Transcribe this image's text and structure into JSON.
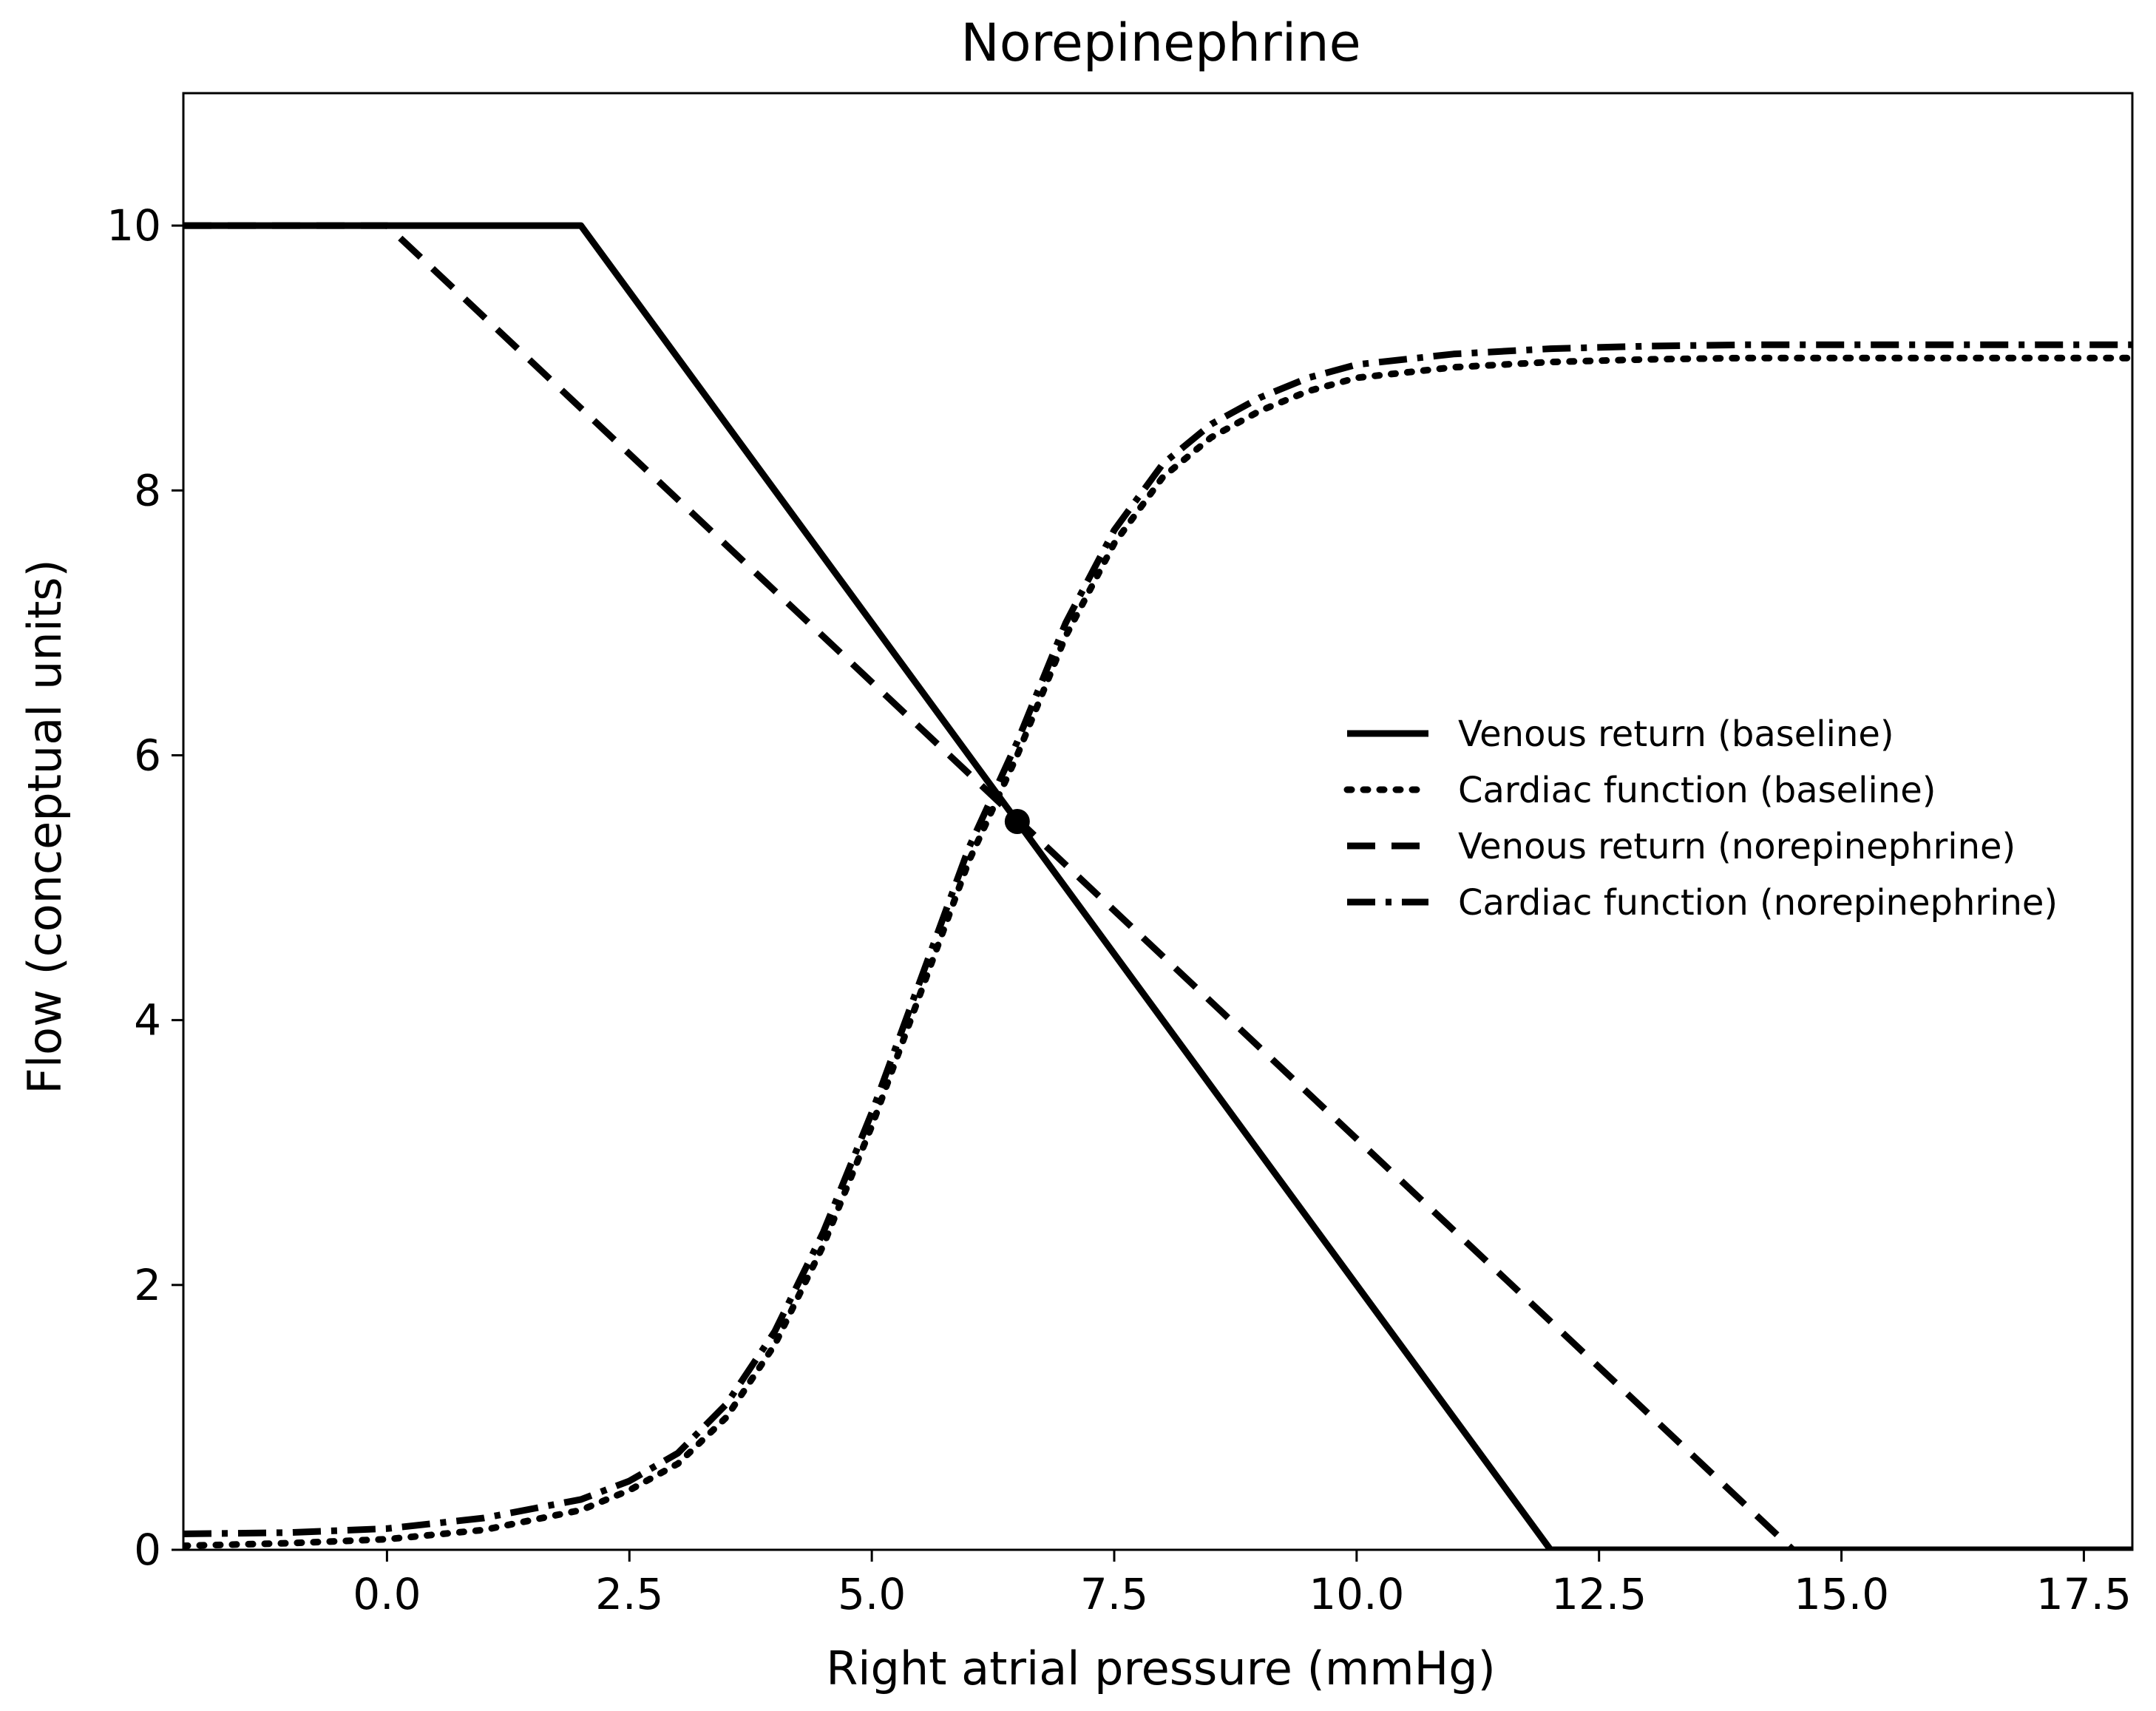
{
  "chart_data": {
    "type": "line",
    "title": "Norepinephrine",
    "xlabel": "Right atrial pressure (mmHg)",
    "ylabel": "Flow (conceptual units)",
    "xlim": [
      -2.1,
      18.0
    ],
    "ylim": [
      0,
      11.0
    ],
    "x_ticks": [
      0.0,
      2.5,
      5.0,
      7.5,
      10.0,
      12.5,
      15.0,
      17.5
    ],
    "x_tick_labels": [
      "0.0",
      "2.5",
      "5.0",
      "7.5",
      "10.0",
      "12.5",
      "15.0",
      "17.5"
    ],
    "y_ticks": [
      0,
      2,
      4,
      6,
      8,
      10
    ],
    "y_tick_labels": [
      "0",
      "2",
      "4",
      "6",
      "8",
      "10"
    ],
    "grid": false,
    "legend_position": "center-right",
    "series": [
      {
        "name": "Venous return (baseline)",
        "style": "solid",
        "color": "#000000",
        "x": [
          -2.1,
          2.0,
          12.0,
          18.0
        ],
        "y": [
          10.0,
          10.0,
          0.0,
          0.0
        ]
      },
      {
        "name": "Cardiac function (baseline)",
        "style": "dotted",
        "color": "#000000",
        "x": [
          -2.1,
          -1.0,
          0.0,
          1.0,
          2.0,
          2.5,
          3.0,
          3.5,
          4.0,
          4.5,
          5.0,
          5.5,
          6.0,
          6.5,
          7.0,
          7.5,
          8.0,
          8.5,
          9.0,
          9.5,
          10.0,
          11.0,
          12.0,
          13.0,
          14.0,
          15.0,
          16.0,
          17.0,
          18.0
        ],
        "y": [
          0.03,
          0.05,
          0.08,
          0.15,
          0.3,
          0.45,
          0.65,
          1.0,
          1.55,
          2.3,
          3.2,
          4.2,
          5.2,
          6.0,
          6.9,
          7.6,
          8.1,
          8.4,
          8.6,
          8.75,
          8.85,
          8.93,
          8.97,
          8.99,
          9.0,
          9.0,
          9.0,
          9.0,
          9.0
        ]
      },
      {
        "name": "Venous return (norepinephrine)",
        "style": "dashed",
        "color": "#000000",
        "x": [
          -2.1,
          0.0,
          14.5,
          18.0
        ],
        "y": [
          10.0,
          10.0,
          0.0,
          0.0
        ]
      },
      {
        "name": "Cardiac function (norepinephrine)",
        "style": "dashdot",
        "color": "#000000",
        "x": [
          -2.1,
          -1.0,
          0.0,
          1.0,
          2.0,
          2.5,
          3.0,
          3.5,
          4.0,
          4.5,
          5.0,
          5.5,
          6.0,
          6.5,
          7.0,
          7.5,
          8.0,
          8.5,
          9.0,
          9.5,
          10.0,
          11.0,
          12.0,
          13.0,
          14.0,
          15.0,
          16.0,
          17.0,
          18.0
        ],
        "y": [
          0.12,
          0.13,
          0.16,
          0.24,
          0.38,
          0.52,
          0.73,
          1.1,
          1.65,
          2.4,
          3.3,
          4.3,
          5.3,
          6.1,
          7.0,
          7.7,
          8.2,
          8.5,
          8.7,
          8.85,
          8.95,
          9.03,
          9.07,
          9.09,
          9.1,
          9.1,
          9.1,
          9.1,
          9.1
        ]
      }
    ],
    "annotations": [
      {
        "type": "marker",
        "x": 6.5,
        "y": 5.5,
        "color": "#000000"
      }
    ]
  }
}
